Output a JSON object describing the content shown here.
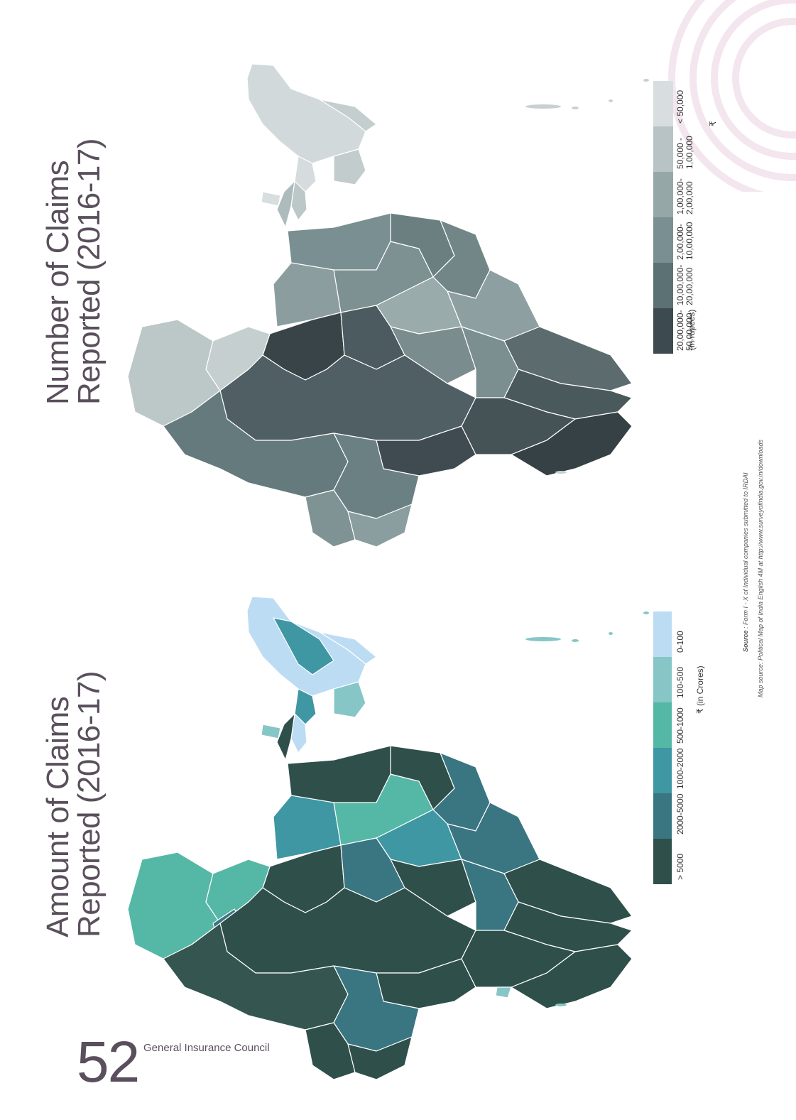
{
  "page": {
    "number": "52",
    "organization": "General Insurance Council"
  },
  "top_map": {
    "title_line1": "Number of Claims",
    "title_line2": "Reported (2016-17)",
    "legend_unit": "(in rupees)",
    "legend_currency": "₹",
    "legend": [
      {
        "label_line1": "20,00,000-",
        "label_line2": "50,00,000",
        "color": "#3d4a4f"
      },
      {
        "label_line1": "10,00,000-",
        "label_line2": "20,00,000",
        "color": "#5c7173"
      },
      {
        "label_line1": "2,00,000-",
        "label_line2": "10,00,000",
        "color": "#7a8f91"
      },
      {
        "label_line1": "1,00,000-",
        "label_line2": "2,00,000",
        "color": "#96a7a8"
      },
      {
        "label_line1": "50,000 -",
        "label_line2": "1,00,000",
        "color": "#b7c3c4"
      },
      {
        "label_line1": "< 50,000",
        "label_line2": "",
        "color": "#d8dedf"
      }
    ]
  },
  "bottom_map": {
    "title_line1": "Amount of Claims",
    "title_line2": "Reported (2016-17)",
    "legend_unit": "₹ (in Crores)",
    "legend": [
      {
        "label": "> 5000",
        "color": "#2f4f4a"
      },
      {
        "label": "2000-5000",
        "color": "#3a7582"
      },
      {
        "label": "1000-2000",
        "color": "#3e97a3"
      },
      {
        "label": "500-1000",
        "color": "#55b8a6"
      },
      {
        "label": "100-500",
        "color": "#86c6c6"
      },
      {
        "label": "0-100",
        "color": "#bcdcf4"
      }
    ]
  },
  "source_line1_bold": "Source",
  "source_line1_rest": " : Form I - X of Individual companies submitted to IRDAI",
  "source_line2": "Map source: Political Map of India English 4M at http://www.surveyofindia.gov.in/downloads"
}
